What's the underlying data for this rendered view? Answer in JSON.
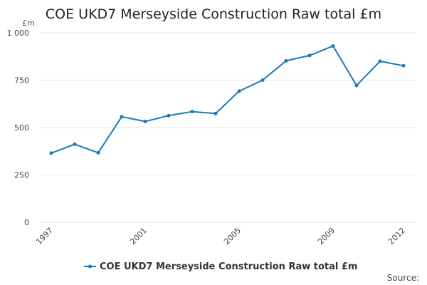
{
  "chart_data": {
    "type": "line",
    "title": "COE UKD7 Merseyside Construction Raw total £m",
    "unit_label": "£m",
    "xlabel": "",
    "ylabel": "",
    "ylim": [
      0,
      1000
    ],
    "yticks": [
      0,
      250,
      500,
      750,
      1000
    ],
    "ytick_labels": [
      "0",
      "250",
      "500",
      "750",
      "1 000"
    ],
    "xlim": [
      1997,
      2012
    ],
    "xticks": [
      1997,
      2001,
      2005,
      2009,
      2012
    ],
    "xtick_labels": [
      "1997",
      "2001",
      "2005",
      "2009",
      "2012"
    ],
    "grid": true,
    "legend_position": "bottom-center",
    "x": [
      1997,
      1998,
      1999,
      2000,
      2001,
      2002,
      2003,
      2004,
      2005,
      2006,
      2007,
      2008,
      2009,
      2010,
      2011,
      2012
    ],
    "series": [
      {
        "name": "COE UKD7 Merseyside Construction Raw total £m",
        "color": "#1a7ab8",
        "values": [
          365,
          412,
          367,
          557,
          532,
          563,
          584,
          574,
          692,
          750,
          852,
          880,
          930,
          722,
          850,
          826
        ]
      }
    ],
    "source_label": "Source:"
  }
}
